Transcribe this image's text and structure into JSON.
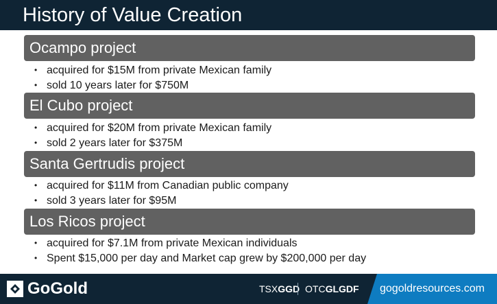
{
  "header": {
    "title": "History of Value Creation"
  },
  "sections": [
    {
      "title": "Ocampo project",
      "bullets": [
        "acquired for $15M from private Mexican family",
        "sold 10 years later for $750M"
      ]
    },
    {
      "title": "El Cubo project",
      "bullets": [
        "acquired for $20M from private Mexican family",
        "sold 2 years later for $375M"
      ]
    },
    {
      "title": "Santa Gertrudis project",
      "bullets": [
        "acquired for $11M from Canadian public company",
        "sold 3 years later for $95M"
      ]
    },
    {
      "title": "Los Ricos project",
      "bullets": [
        "acquired for $7.1M from private Mexican individuals",
        "Spent $15,000 per day and Market cap grew by $200,000 per day"
      ]
    }
  ],
  "footer": {
    "logo": "GoGold",
    "tsx_prefix": "TSX",
    "tsx_symbol": "GGD",
    "otc_prefix": "OTC",
    "otc_symbol": "GLGDF",
    "url": "gogoldresources.com",
    "colors": {
      "band": "#0f2434",
      "accent": "#0e7cc1"
    }
  }
}
